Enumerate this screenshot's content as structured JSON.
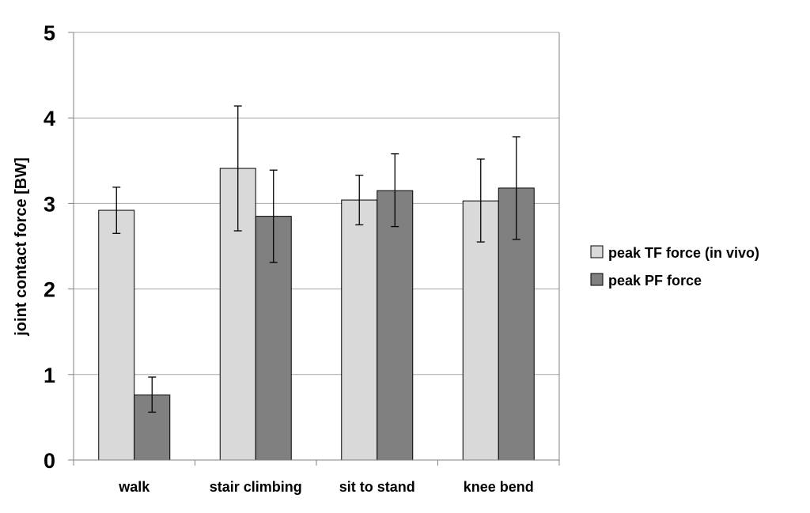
{
  "chart_data": {
    "type": "bar",
    "title": "",
    "xlabel": "",
    "ylabel": "joint contact force [BW]",
    "ylim": [
      0,
      5
    ],
    "yticks": [
      0,
      1,
      2,
      3,
      4,
      5
    ],
    "grid": true,
    "legend_position": "right",
    "categories": [
      "walk",
      "stair climbing",
      "sit to stand",
      "knee bend"
    ],
    "series": [
      {
        "name": "peak TF force (in vivo)",
        "color": "#d9d9d9",
        "values": [
          2.92,
          3.41,
          3.04,
          3.03
        ],
        "error_low": [
          2.65,
          2.68,
          2.75,
          2.55
        ],
        "error_high": [
          3.19,
          4.14,
          3.33,
          3.52
        ]
      },
      {
        "name": "peak PF force",
        "color": "#808080",
        "values": [
          0.76,
          2.85,
          3.15,
          3.18
        ],
        "error_low": [
          0.56,
          2.31,
          2.73,
          2.58
        ],
        "error_high": [
          0.97,
          3.39,
          3.58,
          3.78
        ]
      }
    ]
  }
}
